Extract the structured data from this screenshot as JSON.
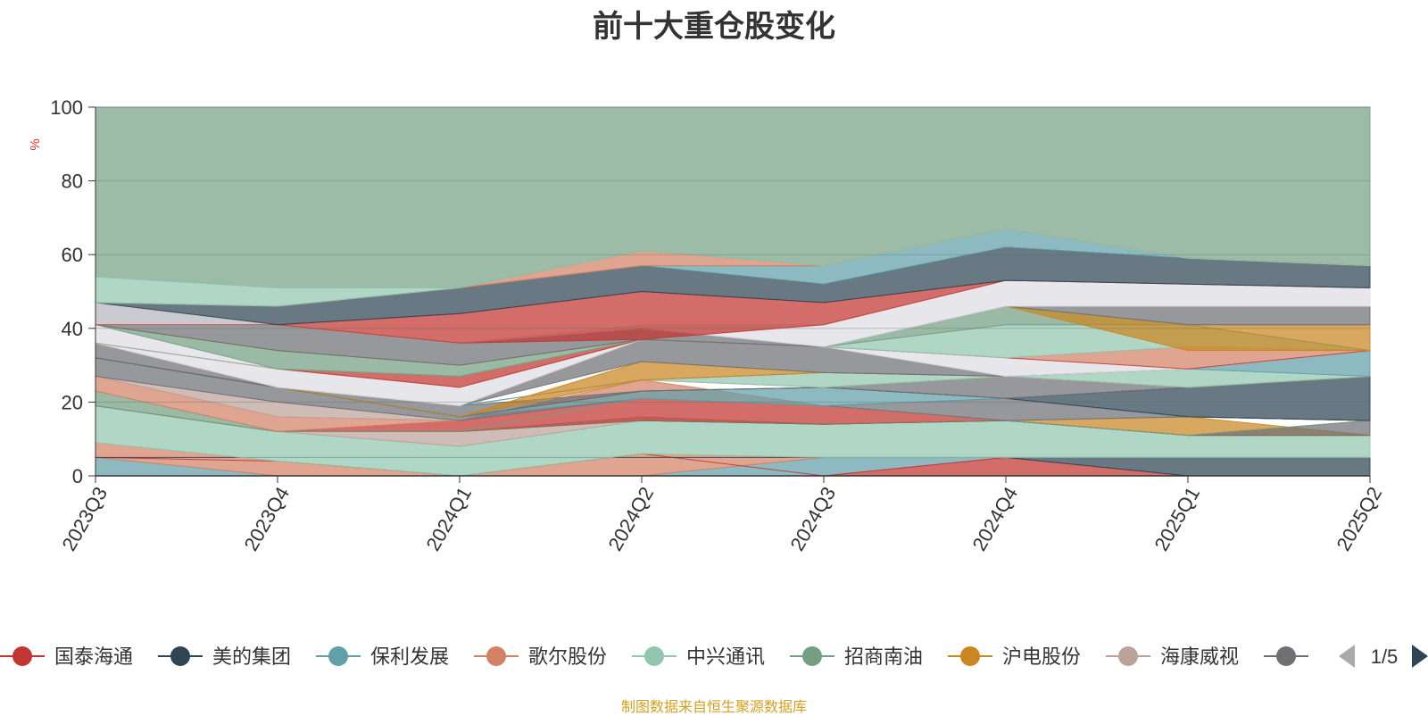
{
  "chart_data": {
    "type": "area",
    "title": "前十大重仓股变化",
    "ylabel": "%",
    "ylim": [
      0,
      100
    ],
    "yticks": [
      0,
      20,
      40,
      60,
      80,
      100
    ],
    "categories": [
      "2023Q3",
      "2023Q4",
      "2024Q1",
      "2024Q2",
      "2024Q3",
      "2024Q4",
      "2025Q1",
      "2025Q2"
    ],
    "grid": true,
    "legend_position": "bottom",
    "legend_page": "1/5",
    "series": [
      {
        "name": "国泰海通",
        "color": "#c23531"
      },
      {
        "name": "美的集团",
        "color": "#2f4554"
      },
      {
        "name": "保利发展",
        "color": "#61a0a8"
      },
      {
        "name": "歌尔股份",
        "color": "#d48265"
      },
      {
        "name": "中兴通讯",
        "color": "#91c7ae"
      },
      {
        "name": "招商南油",
        "color": "#749f83"
      },
      {
        "name": "沪电股份",
        "color": "#ca8622"
      },
      {
        "name": "海康威视",
        "color": "#bda29a"
      },
      {
        "name": "",
        "color": "#6e7074"
      }
    ],
    "bands": [
      {
        "color": "#61a0a8",
        "bottom": [
          0,
          0,
          0,
          0,
          0,
          5,
          5,
          5
        ],
        "top": [
          5,
          0,
          0,
          0,
          5,
          5,
          5,
          5
        ]
      },
      {
        "color": "#d48265",
        "bottom": [
          5,
          0,
          0,
          0,
          5,
          5,
          5,
          5
        ],
        "top": [
          9,
          4,
          0,
          6,
          5,
          5,
          5,
          5
        ]
      },
      {
        "color": "#c23531",
        "bottom": [
          5,
          4,
          0,
          6,
          0,
          0,
          0,
          0
        ],
        "top": [
          5,
          4,
          0,
          6,
          0,
          5,
          0,
          0
        ]
      },
      {
        "color": "#2f4554",
        "bottom": [
          5,
          5,
          5,
          5,
          5,
          5,
          0,
          0
        ],
        "top": [
          5,
          5,
          5,
          5,
          5,
          5,
          5,
          5
        ]
      },
      {
        "color": "#91c7ae",
        "bottom": [
          9,
          4,
          0,
          6,
          5,
          5,
          5,
          5
        ],
        "top": [
          19,
          12,
          8,
          15,
          14,
          15,
          11,
          11
        ]
      },
      {
        "color": "#bda29a",
        "bottom": [
          19,
          12,
          8,
          15,
          14,
          15,
          11,
          11
        ],
        "top": [
          19,
          12,
          12,
          16,
          14,
          15,
          11,
          11
        ]
      },
      {
        "color": "#c23531",
        "bottom": [
          19,
          12,
          12,
          15,
          14,
          15,
          11,
          11
        ],
        "top": [
          19,
          12,
          15,
          21,
          19,
          15,
          11,
          11
        ]
      },
      {
        "color": "#ca8622",
        "bottom": [
          19,
          12,
          12,
          15,
          14,
          15,
          11,
          11
        ],
        "top": [
          19,
          12,
          12,
          15,
          14,
          15,
          16,
          11
        ]
      },
      {
        "color": "#6e7074",
        "bottom": [
          19,
          12,
          12,
          15,
          14,
          15,
          11,
          11
        ],
        "top": [
          19,
          12,
          12,
          15,
          14,
          15,
          11,
          15
        ]
      },
      {
        "color": "#749f83",
        "bottom": [
          19,
          12,
          12,
          21,
          19,
          15,
          11,
          15
        ],
        "top": [
          23,
          12,
          12,
          21,
          19,
          15,
          11,
          15
        ]
      },
      {
        "color": "#d48265",
        "bottom": [
          23,
          12,
          15,
          21,
          19,
          15,
          16,
          15
        ],
        "top": [
          27,
          16,
          15,
          26,
          19,
          15,
          16,
          15
        ]
      },
      {
        "color": "#bda29a",
        "bottom": [
          27,
          16,
          15,
          21,
          19,
          15,
          16,
          15
        ],
        "top": [
          27,
          20,
          15,
          21,
          19,
          15,
          16,
          15
        ]
      },
      {
        "color": "#6e7074",
        "bottom": [
          27,
          20,
          15,
          21,
          19,
          15,
          16,
          15
        ],
        "top": [
          32,
          24,
          16,
          21,
          19,
          21,
          16,
          15
        ]
      },
      {
        "color": "#61a0a8",
        "bottom": [
          32,
          24,
          16,
          21,
          19,
          21,
          16,
          15
        ],
        "top": [
          32,
          24,
          16,
          23,
          24,
          21,
          16,
          15
        ]
      },
      {
        "color": "#2f4554",
        "bottom": [
          32,
          24,
          16,
          23,
          24,
          21,
          16,
          15
        ],
        "top": [
          32,
          24,
          16,
          23,
          24,
          21,
          24,
          27
        ]
      },
      {
        "color": "#6e7074",
        "bottom": [
          32,
          24,
          16,
          23,
          24,
          21,
          24,
          27
        ],
        "top": [
          36,
          24,
          19,
          23,
          24,
          27,
          24,
          27
        ]
      },
      {
        "color": "#d48265",
        "bottom": [
          36,
          24,
          19,
          26,
          24,
          27,
          24,
          27
        ],
        "top": [
          36,
          24,
          19,
          26,
          24,
          27,
          24,
          27
        ]
      },
      {
        "color": "#91c7ae",
        "bottom": [
          36,
          24,
          19,
          26,
          24,
          27,
          24,
          27
        ],
        "top": [
          36,
          24,
          19,
          26,
          28,
          27,
          29,
          27
        ]
      },
      {
        "color": "#61a0a8",
        "bottom": [
          36,
          24,
          19,
          26,
          28,
          27,
          29,
          27
        ],
        "top": [
          36,
          24,
          19,
          26,
          28,
          27,
          29,
          34
        ]
      },
      {
        "color": "#ca8622",
        "bottom": [
          36,
          24,
          16,
          26,
          28,
          27,
          29,
          34
        ],
        "top": [
          36,
          24,
          16,
          31,
          28,
          27,
          29,
          34
        ]
      },
      {
        "color": "#6e7074",
        "bottom": [
          36,
          24,
          19,
          31,
          28,
          27,
          29,
          34
        ],
        "top": [
          36,
          24,
          19,
          37,
          35,
          27,
          29,
          34
        ]
      },
      {
        "color": "#d48265",
        "bottom": [
          36,
          24,
          19,
          37,
          35,
          32,
          29,
          34
        ],
        "top": [
          36,
          24,
          19,
          37,
          35,
          32,
          35,
          34
        ]
      },
      {
        "color": "#dcdde3",
        "bottom": [
          36,
          24,
          19,
          37,
          35,
          27,
          29,
          34
        ],
        "top": [
          41,
          29,
          24,
          37,
          35,
          32,
          29,
          34
        ]
      },
      {
        "color": "#c23531",
        "bottom": [
          36,
          29,
          24,
          37,
          35,
          32,
          29,
          34
        ],
        "top": [
          36,
          29,
          27,
          37,
          35,
          32,
          29,
          34
        ]
      },
      {
        "color": "#91c7ae",
        "bottom": [
          36,
          29,
          27,
          37,
          35,
          32,
          35,
          34
        ],
        "top": [
          36,
          29,
          27,
          37,
          35,
          41,
          41,
          34
        ]
      },
      {
        "color": "#749f83",
        "bottom": [
          41,
          29,
          27,
          37,
          35,
          41,
          41,
          34
        ],
        "top": [
          41,
          34,
          30,
          37,
          35,
          46,
          41,
          34
        ]
      },
      {
        "color": "#ca8622",
        "bottom": [
          41,
          34,
          30,
          37,
          35,
          46,
          34,
          34
        ],
        "top": [
          41,
          34,
          30,
          37,
          35,
          46,
          41,
          41
        ]
      },
      {
        "color": "#6e7074",
        "bottom": [
          41,
          34,
          30,
          37,
          35,
          46,
          41,
          41
        ],
        "top": [
          47,
          41,
          36,
          40,
          35,
          46,
          46,
          46
        ]
      },
      {
        "color": "#dcdde3",
        "bottom": [
          41,
          41,
          36,
          40,
          35,
          46,
          46,
          46
        ],
        "top": [
          47,
          41,
          36,
          41,
          41,
          53,
          52,
          51
        ]
      },
      {
        "color": "#c23531",
        "bottom": [
          41,
          41,
          36,
          37,
          41,
          53,
          52,
          51
        ],
        "top": [
          41,
          41,
          44,
          50,
          47,
          53,
          52,
          51
        ]
      },
      {
        "color": "#2f4554",
        "bottom": [
          47,
          41,
          44,
          50,
          47,
          53,
          52,
          51
        ],
        "top": [
          47,
          46,
          51,
          57,
          52,
          62,
          59,
          57
        ]
      },
      {
        "color": "#61a0a8",
        "bottom": [
          47,
          46,
          51,
          57,
          52,
          62,
          59,
          57
        ],
        "top": [
          47,
          46,
          51,
          57,
          57,
          67,
          59,
          57
        ]
      },
      {
        "color": "#d48265",
        "bottom": [
          47,
          46,
          51,
          57,
          57,
          67,
          59,
          57
        ],
        "top": [
          47,
          46,
          51,
          61,
          57,
          67,
          59,
          57
        ]
      },
      {
        "color": "#91c7ae",
        "bottom": [
          47,
          46,
          51,
          61,
          57,
          67,
          59,
          57
        ],
        "top": [
          54,
          51,
          51,
          61,
          57,
          67,
          59,
          57
        ]
      },
      {
        "color": "#749f83",
        "bottom": [
          54,
          51,
          51,
          61,
          57,
          67,
          59,
          57
        ],
        "top": [
          100,
          100,
          100,
          100,
          100,
          100,
          100,
          100
        ]
      }
    ]
  },
  "footer": {
    "source_text": "制图数据来自恒生聚源数据库",
    "source_color": "#d4a020"
  }
}
